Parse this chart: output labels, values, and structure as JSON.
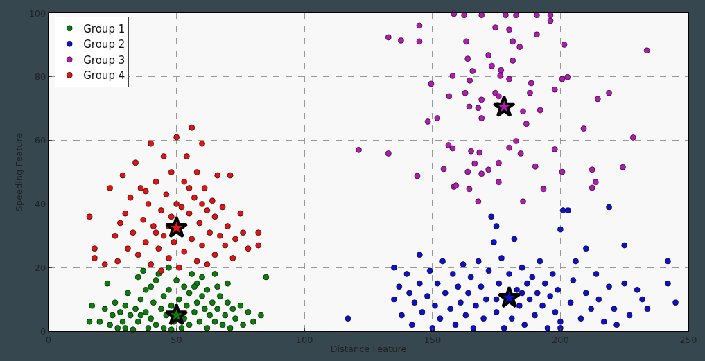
{
  "chart_data": {
    "type": "scatter",
    "xlabel": "Distance Feature",
    "ylabel": "Speeding Feature",
    "xlim": [
      0,
      250
    ],
    "ylim": [
      0,
      100
    ],
    "xticks": [
      0,
      50,
      100,
      150,
      200,
      250
    ],
    "yticks": [
      0,
      20,
      40,
      60,
      80,
      100
    ],
    "grid": true,
    "legend": "top left",
    "marker": "circle",
    "series": [
      {
        "name": "Group 1",
        "color": "#0b7d0b",
        "x": [
          16,
          17,
          20,
          22,
          23,
          24,
          25,
          26,
          27,
          28,
          29,
          30,
          31,
          32,
          33,
          34,
          35,
          35,
          36,
          37,
          38,
          39,
          40,
          40,
          41,
          42,
          43,
          44,
          45,
          45,
          46,
          47,
          47,
          48,
          49,
          50,
          51,
          52,
          53,
          53,
          54,
          55,
          55,
          56,
          57,
          58,
          58,
          59,
          60,
          61,
          62,
          62,
          63,
          64,
          65,
          65,
          66,
          67,
          68,
          69,
          70,
          71,
          72,
          73,
          75,
          76,
          78,
          80,
          83,
          85,
          60,
          57,
          42,
          38,
          30,
          48,
          66,
          70,
          36
        ],
        "values": [
          3,
          8,
          3,
          7,
          15,
          2,
          5,
          9,
          1,
          6,
          3,
          8,
          12,
          5,
          0.5,
          7,
          17,
          3,
          10,
          19,
          6,
          1,
          14,
          4,
          9,
          2,
          18,
          7,
          11,
          1,
          5,
          20,
          13,
          8,
          3,
          16,
          10,
          1,
          14,
          4,
          8,
          12,
          2,
          18,
          6,
          9,
          15,
          3,
          11,
          7,
          1,
          13,
          5,
          9,
          18,
          3,
          7,
          11,
          2,
          5,
          9,
          1,
          7,
          4,
          8,
          2,
          6,
          3,
          5,
          17,
          17,
          14,
          16,
          13,
          1,
          0.5,
          14,
          15,
          5
        ]
      },
      {
        "name": "Group 2",
        "color": "#1010cc",
        "x": [
          117,
          135,
          135,
          137,
          138,
          140,
          141,
          142,
          143,
          145,
          145,
          146,
          148,
          149,
          150,
          151,
          152,
          153,
          154,
          155,
          157,
          158,
          159,
          160,
          161,
          162,
          163,
          164,
          165,
          166,
          167,
          168,
          169,
          170,
          171,
          172,
          173,
          174,
          175,
          175,
          176,
          177,
          178,
          180,
          181,
          182,
          183,
          184,
          185,
          186,
          187,
          188,
          189,
          190,
          191,
          192,
          193,
          194,
          195,
          196,
          197,
          198,
          199,
          200,
          200,
          201,
          203,
          204,
          205,
          206,
          208,
          210,
          210,
          212,
          214,
          215,
          217,
          219,
          219,
          221,
          222,
          225,
          225,
          227,
          230,
          232,
          234,
          242,
          242,
          245,
          200,
          185,
          175
        ],
        "values": [
          4,
          20,
          10,
          14,
          5,
          18,
          12,
          2,
          9,
          24,
          15,
          6,
          11,
          19,
          1,
          8,
          15,
          4,
          22,
          12,
          7,
          18,
          2,
          14,
          9,
          21,
          5,
          12,
          17,
          1,
          8,
          22,
          14,
          4,
          10,
          19,
          36,
          28,
          33,
          6,
          15,
          23,
          1,
          18,
          4,
          29,
          13,
          8,
          20,
          2,
          15,
          10,
          17,
          5,
          12,
          22,
          8,
          15,
          1,
          11,
          18,
          6,
          13,
          32,
          3,
          38,
          38,
          9,
          16,
          22,
          4,
          26,
          12,
          7,
          18,
          10,
          3,
          39,
          14,
          7,
          2,
          27,
          15,
          5,
          13,
          10,
          7,
          22,
          15,
          9,
          1,
          12,
          10
        ]
      },
      {
        "name": "Group 3",
        "color": "#b01cb0",
        "x": [
          121.2,
          132.8,
          137.7,
          144.9,
          144.9,
          132.8,
          144.1,
          148.2,
          149.5,
          151.9,
          154.4,
          156.3,
          157.9,
          158.4,
          159.2,
          158.4,
          162.4,
          169.2,
          163.2,
          163.8,
          164.6,
          165.7,
          162.8,
          164.4,
          167.9,
          169.2,
          165.1,
          166.5,
          163.8,
          164.4,
          167.9,
          168.4,
          169.2,
          171.9,
          171.9,
          173.2,
          174.6,
          175.9,
          175.4,
          176.5,
          176.8,
          178.6,
          180.0,
          181.4,
          182.7,
          184.1,
          181.4,
          180.0,
          175.9,
          175.9,
          180.0,
          182.7,
          184.5,
          185.4,
          186.7,
          185.4,
          188.1,
          188.6,
          190.8,
          190.8,
          192.1,
          193.4,
          190.2,
          196.1,
          196.1,
          197.8,
          197.8,
          201.5,
          200.7,
          202.8,
          200.7,
          209.1,
          212.4,
          213.8,
          214.6,
          212.4,
          219.0,
          224.4,
          228.4,
          233.8,
          156.5,
          157.9,
          169.2,
          174.6
        ],
        "values": [
          57,
          92.4,
          91.4,
          96.1,
          91.1,
          55.9,
          48.8,
          65.9,
          77.8,
          67,
          51,
          58.5,
          57.5,
          45.4,
          45.8,
          99.8,
          99.4,
          99.4,
          91.1,
          85.7,
          78.8,
          81.8,
          74.9,
          70.6,
          70.2,
          67,
          56.6,
          52.7,
          50.1,
          44.7,
          40.8,
          56.2,
          49.5,
          50.8,
          86.8,
          83.4,
          74.9,
          73.9,
          71.1,
          80.3,
          82.1,
          99.4,
          94.8,
          91.1,
          99.4,
          89.4,
          85.1,
          79.3,
          52.9,
          46.9,
          57.7,
          59.8,
          55.9,
          69.1,
          65.2,
          40.8,
          74.9,
          78,
          99.4,
          93.3,
          69.5,
          44.7,
          51.8,
          99.4,
          97.6,
          76,
          57.2,
          90.1,
          79.3,
          79.9,
          50.1,
          63.7,
          50.8,
          46.9,
          73,
          45.1,
          74.9,
          51.6,
          60.9,
          88.3,
          73.9,
          80.3,
          72.8,
          95.5
        ]
      },
      {
        "name": "Group 4",
        "color": "#e01414",
        "x": [
          16,
          18,
          18,
          22,
          24,
          26,
          27,
          28,
          29,
          30,
          31,
          32,
          33,
          34,
          35,
          36,
          37,
          38,
          39,
          40,
          40,
          41,
          42,
          43,
          44,
          45,
          45,
          46,
          47,
          48,
          48,
          49,
          50,
          50,
          51,
          52,
          53,
          53,
          54,
          55,
          56,
          56,
          57,
          58,
          58,
          59,
          60,
          60,
          61,
          62,
          62,
          63,
          64,
          65,
          65,
          66,
          67,
          68,
          69,
          70,
          71,
          72,
          73,
          75,
          76,
          78,
          82,
          82,
          44,
          52,
          47,
          55,
          38,
          60,
          42
        ],
        "values": [
          36,
          26,
          23,
          21,
          45,
          30,
          22,
          34,
          49,
          37,
          26,
          42,
          31,
          53,
          24,
          45,
          35,
          28,
          40,
          59,
          21,
          33,
          47,
          26,
          38,
          55,
          30,
          43,
          23,
          36,
          50,
          28,
          61,
          40,
          20,
          33,
          47,
          25,
          55,
          37,
          29,
          64,
          42,
          22,
          50,
          34,
          59,
          27,
          45,
          38,
          21,
          31,
          41,
          24,
          36,
          49,
          30,
          39,
          27,
          33,
          49,
          23,
          29,
          37,
          31,
          26,
          31,
          27,
          19,
          39,
          33,
          45,
          44,
          40,
          31
        ]
      },
      {
        "marker": "star",
        "colors": [
          "#0b7d0b",
          "#1010cc",
          "#b01cb0",
          "#e01414"
        ],
        "x": [
          50,
          180,
          178,
          50
        ],
        "values": [
          5,
          10.5,
          70.5,
          32.5
        ]
      }
    ]
  }
}
